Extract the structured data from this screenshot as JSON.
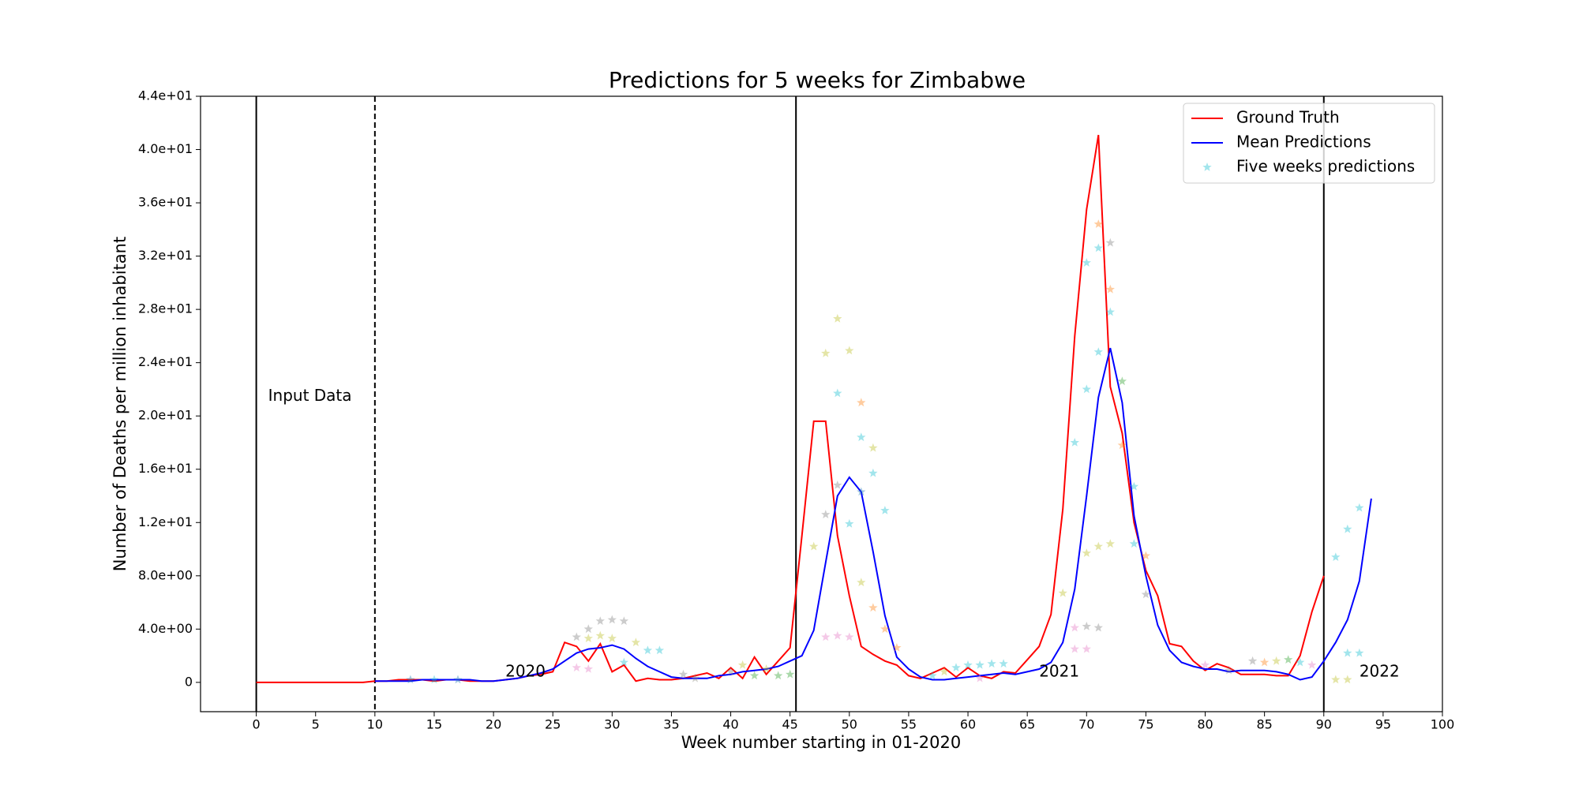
{
  "chart_data": {
    "type": "line",
    "title": "Predictions for 5 weeks for Zimbabwe",
    "x_label": "Week number starting in 01-2020",
    "y_label": "Number of Deaths per million inhabitant",
    "xlim": [
      -4.7,
      100
    ],
    "ylim": [
      -2.2,
      44
    ],
    "xticks": [
      0,
      5,
      10,
      15,
      20,
      25,
      30,
      35,
      40,
      45,
      50,
      55,
      60,
      65,
      70,
      75,
      80,
      85,
      90,
      95,
      100
    ],
    "yticks": [
      0,
      {
        "value": 4,
        "label": "4.0e+00"
      },
      {
        "value": 8,
        "label": "8.0e+00"
      },
      {
        "value": 12,
        "label": "1.2e+01"
      },
      {
        "value": 16,
        "label": "1.6e+01"
      },
      {
        "value": 20,
        "label": "2.0e+01"
      },
      {
        "value": 24,
        "label": "2.4e+01"
      },
      {
        "value": 28,
        "label": "2.8e+01"
      },
      {
        "value": 32,
        "label": "3.2e+01"
      },
      {
        "value": 36,
        "label": "3.6e+01"
      },
      {
        "value": 40,
        "label": "4.0e+01"
      },
      {
        "value": 44,
        "label": "4.4e+01"
      }
    ],
    "legend": "upper right",
    "vlines": [
      {
        "x": 0,
        "dashed": false
      },
      {
        "x": 10,
        "dashed": true
      },
      {
        "x": 45.5,
        "dashed": false
      },
      {
        "x": 90,
        "dashed": false
      }
    ],
    "annotations": [
      {
        "text": "Input Data",
        "x": 1,
        "y": 21
      },
      {
        "text": "2020",
        "x": 21,
        "y": 0.3
      },
      {
        "text": "2021",
        "x": 66,
        "y": 0.3
      },
      {
        "text": "2022",
        "x": 93,
        "y": 0.3
      }
    ],
    "series": [
      {
        "name": "Ground Truth",
        "type": "line",
        "color": "#ff0000",
        "x": [
          0,
          1,
          2,
          3,
          4,
          5,
          6,
          7,
          8,
          9,
          10,
          11,
          12,
          13,
          14,
          15,
          16,
          17,
          18,
          19,
          20,
          21,
          22,
          23,
          24,
          25,
          26,
          27,
          28,
          29,
          30,
          31,
          32,
          33,
          34,
          35,
          36,
          37,
          38,
          39,
          40,
          41,
          42,
          43,
          44,
          45,
          46,
          47,
          48,
          49,
          50,
          51,
          52,
          53,
          54,
          55,
          56,
          57,
          58,
          59,
          60,
          61,
          62,
          63,
          64,
          65,
          66,
          67,
          68,
          69,
          70,
          71,
          72,
          73,
          74,
          75,
          76,
          77,
          78,
          79,
          80,
          81,
          82,
          83,
          84,
          85,
          86,
          87,
          88,
          89,
          90
        ],
        "values": [
          0,
          0,
          0,
          0,
          0,
          0,
          0,
          0,
          0,
          0,
          0.1,
          0.1,
          0.2,
          0.2,
          0.2,
          0.1,
          0.2,
          0.2,
          0.1,
          0.1,
          0.1,
          0.2,
          0.3,
          0.5,
          0.6,
          0.8,
          3.0,
          2.7,
          1.6,
          2.9,
          0.8,
          1.3,
          0.1,
          0.3,
          0.2,
          0.2,
          0.3,
          0.5,
          0.7,
          0.3,
          1.1,
          0.3,
          1.9,
          0.6,
          1.6,
          2.6,
          11.0,
          19.6,
          19.6,
          11.0,
          6.5,
          2.7,
          2.1,
          1.6,
          1.3,
          0.5,
          0.3,
          0.7,
          1.1,
          0.4,
          1.1,
          0.5,
          0.3,
          0.8,
          0.7,
          1.7,
          2.7,
          5.1,
          13.0,
          26.0,
          35.5,
          41.1,
          22.2,
          18.7,
          12.0,
          8.4,
          6.5,
          2.9,
          2.7,
          1.6,
          0.9,
          1.4,
          1.1,
          0.6,
          0.6,
          0.6,
          0.5,
          0.5,
          2.0,
          5.3,
          8.0
        ]
      },
      {
        "name": "Mean Predictions",
        "type": "line",
        "color": "#0000ff",
        "x": [
          10,
          11,
          12,
          13,
          14,
          15,
          16,
          17,
          18,
          19,
          20,
          21,
          22,
          23,
          24,
          25,
          26,
          27,
          28,
          29,
          30,
          31,
          32,
          33,
          34,
          35,
          36,
          37,
          38,
          39,
          40,
          41,
          42,
          43,
          44,
          45,
          46,
          47,
          48,
          49,
          50,
          51,
          52,
          53,
          54,
          55,
          56,
          57,
          58,
          59,
          60,
          61,
          62,
          63,
          64,
          65,
          66,
          67,
          68,
          69,
          70,
          71,
          72,
          73,
          74,
          75,
          76,
          77,
          78,
          79,
          80,
          81,
          82,
          83,
          84,
          85,
          86,
          87,
          88,
          89,
          90,
          91,
          92,
          93,
          94
        ],
        "values": [
          0.1,
          0.1,
          0.1,
          0.1,
          0.2,
          0.2,
          0.2,
          0.2,
          0.2,
          0.1,
          0.1,
          0.2,
          0.3,
          0.5,
          0.7,
          1.0,
          1.6,
          2.2,
          2.5,
          2.6,
          2.8,
          2.5,
          1.8,
          1.2,
          0.8,
          0.4,
          0.3,
          0.3,
          0.3,
          0.5,
          0.6,
          0.8,
          0.9,
          1.0,
          1.2,
          1.6,
          2.0,
          3.9,
          9.0,
          14.0,
          15.4,
          14.3,
          9.8,
          5.0,
          1.9,
          1.0,
          0.4,
          0.2,
          0.2,
          0.3,
          0.4,
          0.5,
          0.6,
          0.7,
          0.6,
          0.8,
          1.0,
          1.5,
          3.0,
          7.0,
          14.0,
          21.4,
          25.1,
          21.0,
          12.5,
          8.0,
          4.3,
          2.4,
          1.5,
          1.2,
          1.0,
          1.0,
          0.8,
          0.9,
          0.9,
          0.9,
          0.8,
          0.6,
          0.2,
          0.4,
          1.6,
          3.0,
          4.7,
          7.6,
          13.8
        ]
      },
      {
        "name": "Five weeks predictions",
        "type": "scatter",
        "color": "#17becf",
        "x": [
          47,
          48,
          49,
          50,
          51,
          52,
          49,
          50,
          51,
          52,
          53,
          48,
          49,
          51,
          48,
          49,
          50,
          51,
          52,
          53,
          54,
          69,
          70,
          70,
          71,
          71,
          72,
          72,
          72,
          71,
          73,
          73,
          74,
          74,
          75,
          75,
          70,
          71,
          72,
          68,
          69,
          70,
          71,
          69,
          70,
          27,
          28,
          29,
          30,
          31,
          28,
          29,
          30,
          32,
          33,
          34,
          27,
          28,
          31,
          91,
          92,
          93,
          92,
          93,
          91,
          92,
          88,
          89,
          84,
          85,
          86,
          87,
          80,
          82,
          57,
          58,
          59,
          60,
          61,
          62,
          63,
          61,
          42,
          43,
          44,
          45,
          40,
          41,
          36,
          37,
          13,
          15,
          17
        ],
        "values": [
          10.2,
          24.7,
          27.3,
          24.9,
          21.0,
          17.6,
          21.7,
          11.9,
          18.4,
          15.7,
          12.9,
          12.6,
          14.8,
          14.3,
          3.4,
          3.5,
          3.4,
          7.5,
          5.6,
          4.0,
          2.6,
          18.0,
          22.0,
          31.5,
          32.6,
          34.4,
          33.0,
          29.5,
          27.8,
          24.8,
          22.6,
          17.8,
          14.7,
          10.4,
          9.5,
          6.6,
          9.7,
          10.2,
          10.4,
          6.7,
          4.1,
          4.2,
          4.1,
          2.5,
          2.5,
          3.4,
          4.0,
          4.6,
          4.7,
          4.6,
          3.3,
          3.5,
          3.3,
          3.0,
          2.4,
          2.4,
          1.1,
          1.0,
          1.5,
          9.4,
          11.5,
          13.1,
          2.2,
          2.2,
          0.2,
          0.2,
          1.5,
          1.3,
          1.6,
          1.5,
          1.6,
          1.7,
          1.3,
          0.9,
          0.5,
          0.8,
          1.1,
          1.3,
          1.3,
          1.4,
          1.4,
          0.3,
          0.5,
          1.0,
          0.5,
          0.6,
          0.8,
          1.3,
          0.6,
          0.3,
          0.2,
          0.2,
          0.2
        ],
        "colors": [
          "#bcbd22",
          "#bcbd22",
          "#bcbd22",
          "#bcbd22",
          "#ff7f0e",
          "#bcbd22",
          "#17becf",
          "#17becf",
          "#17becf",
          "#17becf",
          "#17becf",
          "#7f7f7f",
          "#7f7f7f",
          "#1f77b4",
          "#e377c2",
          "#e377c2",
          "#e377c2",
          "#bcbd22",
          "#ff7f0e",
          "#ff7f0e",
          "#ff7f0e",
          "#17becf",
          "#17becf",
          "#17becf",
          "#17becf",
          "#ff7f0e",
          "#7f7f7f",
          "#ff7f0e",
          "#17becf",
          "#17becf",
          "#2ca02c",
          "#ff7f0e",
          "#17becf",
          "#17becf",
          "#ff7f0e",
          "#7f7f7f",
          "#bcbd22",
          "#bcbd22",
          "#bcbd22",
          "#bcbd22",
          "#e377c2",
          "#7f7f7f",
          "#7f7f7f",
          "#e377c2",
          "#e377c2",
          "#7f7f7f",
          "#7f7f7f",
          "#7f7f7f",
          "#7f7f7f",
          "#7f7f7f",
          "#bcbd22",
          "#bcbd22",
          "#bcbd22",
          "#bcbd22",
          "#17becf",
          "#17becf",
          "#e377c2",
          "#e377c2",
          "#17becf",
          "#17becf",
          "#17becf",
          "#17becf",
          "#17becf",
          "#17becf",
          "#bcbd22",
          "#bcbd22",
          "#17becf",
          "#e377c2",
          "#7f7f7f",
          "#ff7f0e",
          "#bcbd22",
          "#2ca02c",
          "#e377c2",
          "#7f7f7f",
          "#17becf",
          "#bcbd22",
          "#17becf",
          "#17becf",
          "#17becf",
          "#17becf",
          "#17becf",
          "#e377c2",
          "#2ca02c",
          "#bcbd22",
          "#2ca02c",
          "#2ca02c",
          "#7f7f7f",
          "#bcbd22",
          "#7f7f7f",
          "#7f7f7f",
          "#1f77b4",
          "#17becf",
          "#1f77b4"
        ]
      }
    ]
  }
}
